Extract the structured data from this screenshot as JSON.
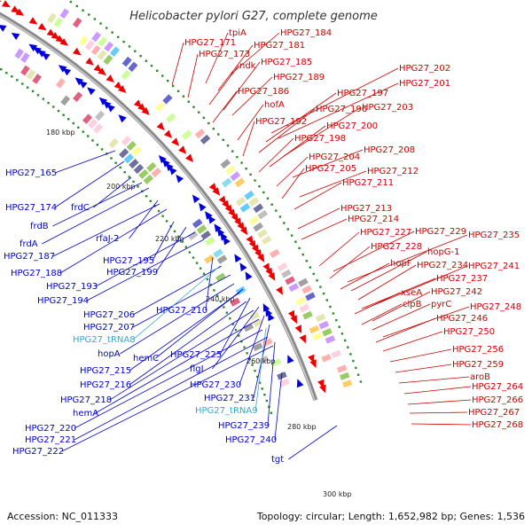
{
  "title": "Helicobacter pylori G27, complete genome",
  "accession": "Accession: NC_011333",
  "stats": "Topology: circular; Length: 1,652,982 bp; Genes: 1,536",
  "colors": {
    "reverse_label": "#0000cc",
    "forward_label": "#cc0000",
    "rna_label": "#33aacc",
    "backbone": "#999999"
  },
  "kbp_ticks": [
    "180 kbp",
    "200 kbp",
    "220 kbp",
    "240 kbp",
    "260 kbp",
    "280 kbp",
    "300 kbp"
  ],
  "left_labels": [
    {
      "text": "HPG27_165",
      "type": "cds"
    },
    {
      "text": "HPG27_174",
      "type": "cds"
    },
    {
      "text": "frdC",
      "type": "cds"
    },
    {
      "text": "frdB",
      "type": "cds"
    },
    {
      "text": "frdA",
      "type": "cds"
    },
    {
      "text": "rfaJ-2",
      "type": "cds"
    },
    {
      "text": "HPG27_187",
      "type": "cds"
    },
    {
      "text": "HPG27_188",
      "type": "cds"
    },
    {
      "text": "HPG27_195",
      "type": "cds"
    },
    {
      "text": "HPG27_199",
      "type": "cds"
    },
    {
      "text": "HPG27_193",
      "type": "cds"
    },
    {
      "text": "HPG27_194",
      "type": "cds"
    },
    {
      "text": "HPG27_210",
      "type": "cds"
    },
    {
      "text": "HPG27_206",
      "type": "cds"
    },
    {
      "text": "HPG27_207",
      "type": "cds"
    },
    {
      "text": "HPG27_tRNA8",
      "type": "rna"
    },
    {
      "text": "hopA",
      "type": "cds"
    },
    {
      "text": "hemC",
      "type": "cds"
    },
    {
      "text": "HPG27_225",
      "type": "cds"
    },
    {
      "text": "HPG27_215",
      "type": "cds"
    },
    {
      "text": "flgI",
      "type": "cds"
    },
    {
      "text": "HPG27_216",
      "type": "cds"
    },
    {
      "text": "HPG27_230",
      "type": "cds"
    },
    {
      "text": "HPG27_231",
      "type": "cds"
    },
    {
      "text": "HPG27_218",
      "type": "cds"
    },
    {
      "text": "HPG27_tRNA9",
      "type": "rna"
    },
    {
      "text": "hemA",
      "type": "cds"
    },
    {
      "text": "HPG27_239",
      "type": "cds"
    },
    {
      "text": "HPG27_220",
      "type": "cds"
    },
    {
      "text": "HPG27_221",
      "type": "cds"
    },
    {
      "text": "HPG27_240",
      "type": "cds"
    },
    {
      "text": "HPG27_222",
      "type": "cds"
    },
    {
      "text": "tgt",
      "type": "cds"
    }
  ],
  "right_labels": [
    "HPG27_184",
    "tpiA",
    "HPG27_171",
    "HPG27_181",
    "HPG27_173",
    "ndk",
    "HPG27_185",
    "HPG27_189",
    "HPG27_186",
    "HPG27_202",
    "HPG27_201",
    "HPG27_197",
    "hofA",
    "HPG27_196",
    "HPG27_203",
    "HPG27_192",
    "HPG27_200",
    "HPG27_198",
    "HPG27_208",
    "HPG27_204",
    "HPG27_212",
    "HPG27_205",
    "HPG27_211",
    "HPG27_213",
    "HPG27_214",
    "HPG27_227",
    "HPG27_229",
    "HPG27_235",
    "HPG27_228",
    "hopG-1",
    "hopF",
    "HPG27_234",
    "HPG27_241",
    "HPG27_237",
    "xseA",
    "HPG27_242",
    "clpB",
    "pyrC",
    "HPG27_248",
    "HPG27_246",
    "HPG27_250",
    "HPG27_256",
    "HPG27_259",
    "aroB",
    "HPG27_264",
    "HPG27_266",
    "HPG27_267",
    "HPG27_268"
  ]
}
